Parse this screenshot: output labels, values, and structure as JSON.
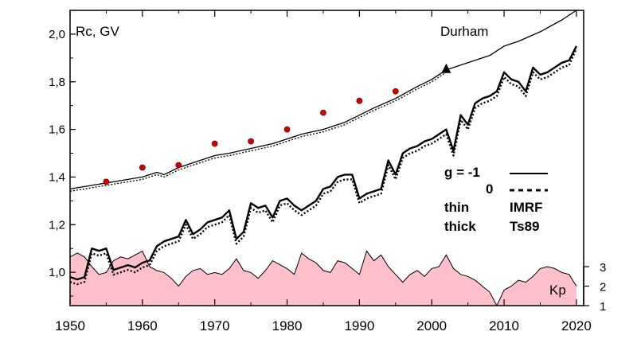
{
  "chart_data": {
    "type": "line",
    "xlim": [
      1950,
      2021
    ],
    "ylim": [
      0.86,
      2.1
    ],
    "x_ticks": [
      "1950",
      "1960",
      "1970",
      "1980",
      "1990",
      "2000",
      "2010",
      "2020"
    ],
    "y_ticks": [
      "2,0",
      "1,8",
      "1,6",
      "1,4",
      "1,2",
      "1,0"
    ],
    "ylabel": "Rc, GV",
    "station": "Durham",
    "legend": {
      "g_label": "g  = -1",
      "zero_label": "0",
      "thin_label": "thin",
      "thick_label": "thick",
      "imrf_label": "IMRF",
      "ts89_label": "Ts89"
    },
    "series": [
      {
        "style": "thin-solid",
        "x": [
          1950,
          1952,
          1954,
          1956,
          1958,
          1960,
          1962,
          1963,
          1965,
          1967,
          1970,
          1972,
          1975,
          1978,
          1980,
          1982,
          1985,
          1988,
          1990,
          1992,
          1995,
          1998,
          2000,
          2002,
          2005,
          2008,
          2010,
          2012,
          2015,
          2018,
          2020
        ],
        "y": [
          1.35,
          1.36,
          1.37,
          1.38,
          1.39,
          1.4,
          1.42,
          1.41,
          1.44,
          1.46,
          1.49,
          1.5,
          1.52,
          1.54,
          1.56,
          1.58,
          1.6,
          1.63,
          1.66,
          1.69,
          1.73,
          1.78,
          1.81,
          1.85,
          1.88,
          1.91,
          1.95,
          1.97,
          2.01,
          2.06,
          2.1
        ]
      },
      {
        "style": "thin-dotted",
        "x": [
          1950,
          1952,
          1954,
          1956,
          1958,
          1960,
          1962,
          1963,
          1965,
          1967,
          1970,
          1972,
          1975,
          1978,
          1980,
          1982,
          1985,
          1988,
          1990,
          1992,
          1995,
          1998,
          2000,
          2002
        ],
        "y": [
          1.34,
          1.35,
          1.36,
          1.37,
          1.38,
          1.39,
          1.41,
          1.4,
          1.43,
          1.45,
          1.48,
          1.49,
          1.51,
          1.53,
          1.55,
          1.57,
          1.59,
          1.62,
          1.65,
          1.68,
          1.72,
          1.77,
          1.8,
          1.84
        ]
      },
      {
        "style": "thick-solid",
        "x": [
          1950,
          1951,
          1952,
          1953,
          1954,
          1955,
          1956,
          1957,
          1958,
          1959,
          1960,
          1961,
          1962,
          1963,
          1964,
          1965,
          1966,
          1967,
          1968,
          1969,
          1970,
          1971,
          1972,
          1973,
          1974,
          1975,
          1976,
          1977,
          1978,
          1979,
          1980,
          1981,
          1982,
          1983,
          1984,
          1985,
          1986,
          1987,
          1988,
          1989,
          1990,
          1991,
          1992,
          1993,
          1994,
          1995,
          1996,
          1997,
          1998,
          1999,
          2000,
          2001,
          2002,
          2003,
          2004,
          2005,
          2006,
          2007,
          2008,
          2009,
          2010,
          2011,
          2012,
          2013,
          2014,
          2015,
          2016,
          2017,
          2018,
          2019,
          2020
        ],
        "y": [
          0.98,
          0.97,
          0.98,
          1.1,
          1.09,
          1.1,
          1.01,
          1.02,
          1.03,
          1.02,
          1.04,
          1.05,
          1.11,
          1.13,
          1.14,
          1.15,
          1.22,
          1.16,
          1.18,
          1.21,
          1.22,
          1.23,
          1.26,
          1.14,
          1.17,
          1.29,
          1.27,
          1.28,
          1.23,
          1.3,
          1.31,
          1.28,
          1.26,
          1.28,
          1.3,
          1.35,
          1.36,
          1.4,
          1.41,
          1.41,
          1.31,
          1.33,
          1.34,
          1.35,
          1.47,
          1.41,
          1.5,
          1.52,
          1.53,
          1.55,
          1.56,
          1.58,
          1.6,
          1.51,
          1.66,
          1.62,
          1.71,
          1.73,
          1.74,
          1.76,
          1.84,
          1.81,
          1.8,
          1.76,
          1.86,
          1.83,
          1.84,
          1.86,
          1.88,
          1.89,
          1.95
        ]
      },
      {
        "style": "thick-dotted",
        "x": [
          1950,
          1951,
          1952,
          1953,
          1954,
          1955,
          1956,
          1957,
          1958,
          1959,
          1960,
          1961,
          1962,
          1963,
          1964,
          1965,
          1966,
          1967,
          1968,
          1969,
          1970,
          1971,
          1972,
          1973,
          1974,
          1975,
          1976,
          1977,
          1978,
          1979,
          1980,
          1981,
          1982,
          1983,
          1984,
          1985,
          1986,
          1987,
          1988,
          1989,
          1990,
          1991,
          1992,
          1993,
          1994,
          1995,
          1996,
          1997,
          1998,
          1999,
          2000,
          2001,
          2002,
          2003,
          2004,
          2005,
          2006,
          2007,
          2008,
          2009,
          2010,
          2011,
          2012,
          2013,
          2014,
          2015,
          2016,
          2017,
          2018,
          2019,
          2020
        ],
        "y": [
          0.96,
          0.95,
          0.96,
          1.08,
          1.07,
          1.08,
          0.99,
          1.0,
          1.01,
          1.0,
          1.02,
          1.03,
          1.09,
          1.11,
          1.12,
          1.13,
          1.2,
          1.14,
          1.16,
          1.19,
          1.2,
          1.21,
          1.24,
          1.12,
          1.15,
          1.27,
          1.25,
          1.26,
          1.21,
          1.28,
          1.29,
          1.26,
          1.24,
          1.26,
          1.28,
          1.33,
          1.34,
          1.38,
          1.39,
          1.39,
          1.29,
          1.31,
          1.32,
          1.33,
          1.45,
          1.39,
          1.48,
          1.5,
          1.51,
          1.53,
          1.54,
          1.56,
          1.58,
          1.49,
          1.64,
          1.6,
          1.69,
          1.71,
          1.72,
          1.74,
          1.82,
          1.79,
          1.78,
          1.74,
          1.84,
          1.81,
          1.82,
          1.84,
          1.86,
          1.87,
          1.94
        ]
      }
    ],
    "points": {
      "x": [
        1955,
        1960,
        1965,
        1970,
        1975,
        1980,
        1985,
        1990,
        1995
      ],
      "y": [
        1.38,
        1.44,
        1.45,
        1.54,
        1.55,
        1.6,
        1.67,
        1.72,
        1.76
      ],
      "color": "#cc0000"
    },
    "marker_triangle": {
      "x": 2002,
      "y": 1.85
    },
    "kp_panel": {
      "label": "Kp",
      "ylim": [
        1,
        3
      ],
      "y_ticks": [
        "3",
        "2",
        "1"
      ],
      "fill_color": "#ffc0cb",
      "x": [
        1950,
        1951,
        1952,
        1953,
        1954,
        1955,
        1956,
        1957,
        1958,
        1959,
        1960,
        1961,
        1962,
        1963,
        1964,
        1965,
        1966,
        1967,
        1968,
        1969,
        1970,
        1971,
        1972,
        1973,
        1974,
        1975,
        1976,
        1977,
        1978,
        1979,
        1980,
        1981,
        1982,
        1983,
        1984,
        1985,
        1986,
        1987,
        1988,
        1989,
        1990,
        1991,
        1992,
        1993,
        1994,
        1995,
        1996,
        1997,
        1998,
        1999,
        2000,
        2001,
        2002,
        2003,
        2004,
        2005,
        2006,
        2007,
        2008,
        2009,
        2010,
        2011,
        2012,
        2013,
        2014,
        2015,
        2016,
        2017,
        2018,
        2019,
        2020
      ],
      "y": [
        3.5,
        3.7,
        3.5,
        3.0,
        2.6,
        2.7,
        3.3,
        3.5,
        3.4,
        3.6,
        3.8,
        3.0,
        2.8,
        2.7,
        2.4,
        2.0,
        2.5,
        2.8,
        2.9,
        2.6,
        2.7,
        2.6,
        2.9,
        3.4,
        2.8,
        2.7,
        2.4,
        2.8,
        3.3,
        3.1,
        2.9,
        2.6,
        3.7,
        3.4,
        3.2,
        2.8,
        2.7,
        3.3,
        3.2,
        2.9,
        2.6,
        3.8,
        3.3,
        3.6,
        3.0,
        2.6,
        2.2,
        2.6,
        2.8,
        2.5,
        2.9,
        3.0,
        3.6,
        2.9,
        2.6,
        2.5,
        2.3,
        2.0,
        1.7,
        1.0,
        1.8,
        2.0,
        2.3,
        2.2,
        2.5,
        2.9,
        3.0,
        2.9,
        2.7,
        2.6,
        2.0
      ]
    }
  }
}
